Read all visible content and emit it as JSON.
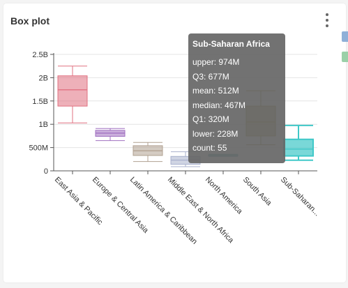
{
  "card": {
    "title": "Box plot"
  },
  "menu": {
    "icon": "kebab-vertical-icon"
  },
  "tooltip": {
    "title": "Sub-Saharan Africa",
    "rows": [
      "upper: 974M",
      "Q3: 677M",
      "mean: 512M",
      "median: 467M",
      "Q1: 320M",
      "lower: 228M",
      "count: 55"
    ]
  },
  "chart_data": {
    "type": "boxplot",
    "title": "Box plot",
    "xlabel": "",
    "ylabel": "",
    "ylim": [
      0,
      2500000000
    ],
    "yticks": [
      0,
      500000000,
      1000000000,
      1500000000,
      2000000000,
      2500000000
    ],
    "ytick_labels": [
      "0",
      "500M",
      "1B",
      "1.5B",
      "2B",
      "2.5B"
    ],
    "grid": true,
    "categories": [
      "East Asia & Pacific",
      "Europe & Central Asia",
      "Latin America & Caribbean",
      "Middle East & North Africa",
      "North America",
      "South Asia",
      "Sub-Saharan Africa"
    ],
    "category_labels": [
      "East Asia & Pacific",
      "Europe & Central Asia",
      "Latin America & Caribbean",
      "Middle East & North Africa",
      "North America",
      "South Asia",
      "Sub-Saharan..."
    ],
    "boxes": [
      {
        "upper": 2250000000,
        "q3": 2040000000,
        "median": 1740000000,
        "mean": 1720000000,
        "q1": 1390000000,
        "lower": 1030000000,
        "color": "#e07080"
      },
      {
        "upper": 910000000,
        "q3": 870000000,
        "median": 810000000,
        "mean": 800000000,
        "q1": 740000000,
        "lower": 650000000,
        "color": "#a070c0"
      },
      {
        "upper": 610000000,
        "q3": 540000000,
        "median": 430000000,
        "mean": 440000000,
        "q1": 330000000,
        "lower": 200000000,
        "color": "#b0a090"
      },
      {
        "upper": 410000000,
        "q3": 310000000,
        "median": 230000000,
        "mean": 230000000,
        "q1": 140000000,
        "lower": 90000000,
        "color": "#a8b0cc"
      },
      {
        "upper": 355000000,
        "q3": 345000000,
        "median": 330000000,
        "mean": 330000000,
        "q1": 320000000,
        "lower": 310000000,
        "color": "#5aaab4"
      },
      {
        "upper": 1720000000,
        "q3": 1390000000,
        "median": 1050000000,
        "mean": 1070000000,
        "q1": 750000000,
        "lower": 560000000,
        "color": "#a89030"
      },
      {
        "upper": 974000000,
        "q3": 677000000,
        "median": 467000000,
        "mean": 512000000,
        "q1": 320000000,
        "lower": 228000000,
        "color": "#40c8c8"
      }
    ],
    "legend": "none"
  }
}
